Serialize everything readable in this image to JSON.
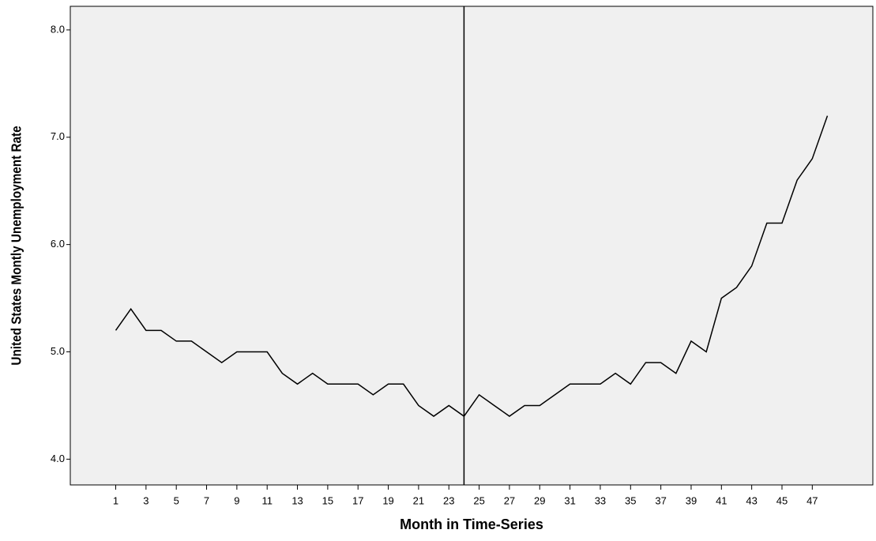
{
  "chart_data": {
    "type": "line",
    "ylabel": "United States Montly Unemployment Rate",
    "xlabel": "Month in Time-Series",
    "x": [
      1,
      2,
      3,
      4,
      5,
      6,
      7,
      8,
      9,
      10,
      11,
      12,
      13,
      14,
      15,
      16,
      17,
      18,
      19,
      20,
      21,
      22,
      23,
      24,
      25,
      26,
      27,
      28,
      29,
      30,
      31,
      32,
      33,
      34,
      35,
      36,
      37,
      38,
      39,
      40,
      41,
      42,
      43,
      44,
      45,
      46,
      47,
      48
    ],
    "values": [
      5.2,
      5.4,
      5.2,
      5.2,
      5.1,
      5.1,
      5.0,
      4.9,
      5.0,
      5.0,
      5.0,
      4.8,
      4.7,
      4.8,
      4.7,
      4.7,
      4.7,
      4.6,
      4.7,
      4.7,
      4.5,
      4.4,
      4.5,
      4.4,
      4.6,
      4.5,
      4.4,
      4.5,
      4.5,
      4.6,
      4.7,
      4.7,
      4.7,
      4.8,
      4.7,
      4.9,
      4.9,
      4.8,
      5.1,
      5.0,
      5.5,
      5.6,
      5.8,
      6.2,
      6.2,
      6.6,
      6.8,
      7.2
    ],
    "color": "#000000",
    "reference_line_x": 24,
    "xlim": [
      -2,
      51
    ],
    "xticks": [
      1,
      3,
      5,
      7,
      9,
      11,
      13,
      15,
      17,
      19,
      21,
      23,
      25,
      27,
      29,
      31,
      33,
      35,
      37,
      39,
      41,
      43,
      45,
      47
    ],
    "ylim": [
      3.76,
      8.22
    ],
    "yticks": [
      {
        "value": 4,
        "label": "4.0"
      },
      {
        "value": 5,
        "label": "5.0"
      },
      {
        "value": 6,
        "label": "6.0"
      },
      {
        "value": 7,
        "label": "7.0"
      },
      {
        "value": 8,
        "label": "8.0"
      }
    ],
    "background": "#f0f0f0"
  }
}
